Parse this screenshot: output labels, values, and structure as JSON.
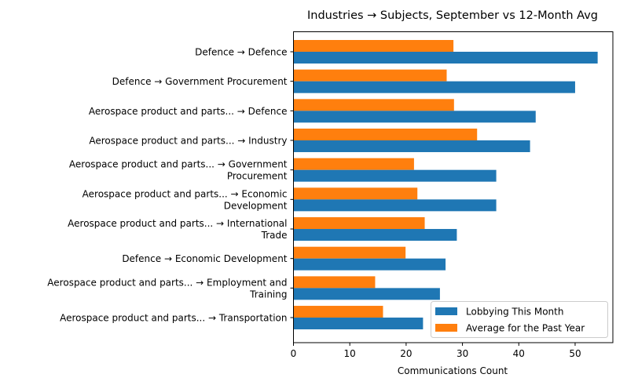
{
  "chart_data": {
    "type": "bar",
    "orientation": "horizontal",
    "title": "Industries → Subjects, September vs 12-Month Avg",
    "xlabel": "Communications Count",
    "ylabel": "",
    "xlim": [
      0,
      56.7
    ],
    "xticks": [
      0,
      10,
      20,
      30,
      40,
      50
    ],
    "grid": false,
    "legend_position": "lower right",
    "categories": [
      [
        "Defence → Defence"
      ],
      [
        "Defence → Government Procurement"
      ],
      [
        "Aerospace product and parts... → Defence"
      ],
      [
        "Aerospace product and parts... → Industry"
      ],
      [
        "Aerospace product and parts... → Government",
        "Procurement"
      ],
      [
        "Aerospace product and parts... → Economic",
        "Development"
      ],
      [
        "Aerospace product and parts... → International",
        "Trade"
      ],
      [
        "Defence → Economic Development"
      ],
      [
        "Aerospace product and parts... → Employment and",
        "Training"
      ],
      [
        "Aerospace product and parts... → Transportation"
      ]
    ],
    "series": [
      {
        "name": "Lobbying This Month",
        "color": "#1f77b4",
        "values": [
          54,
          50,
          43,
          42,
          36,
          36,
          29,
          27,
          26,
          23
        ]
      },
      {
        "name": "Average for the Past Year",
        "color": "#ff7f0e",
        "values": [
          28.4,
          27.2,
          28.5,
          32.6,
          21.4,
          22.0,
          23.3,
          19.9,
          14.5,
          15.9
        ]
      }
    ]
  }
}
